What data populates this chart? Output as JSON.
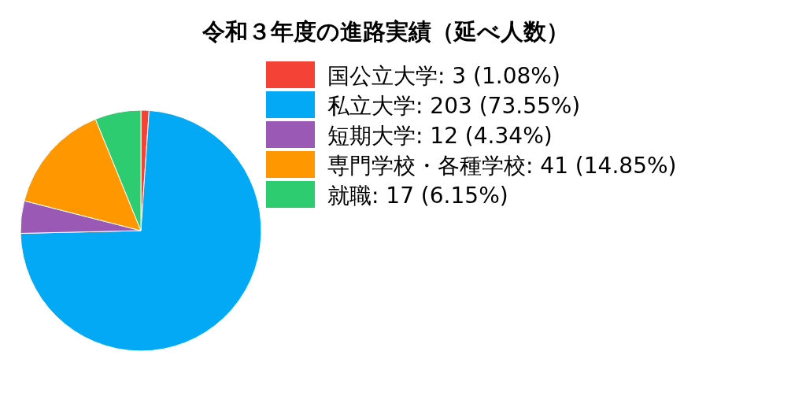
{
  "chart_data": {
    "type": "pie",
    "title": "令和３年度の進路実績（延べ人数）",
    "categories": [
      "国公立大学: 3 (1.08%)",
      "私立大学: 203 (73.55%)",
      "短期大学: 12 (4.34%)",
      "専門学校・各種学校: 41 (14.85%)",
      "就職: 17 (6.15%)"
    ],
    "values": [
      3,
      203,
      12,
      41,
      17
    ],
    "colors": [
      "#f44336",
      "#03a9f4",
      "#9b59b6",
      "#ff9800",
      "#2ecc71"
    ],
    "legend": "right"
  }
}
